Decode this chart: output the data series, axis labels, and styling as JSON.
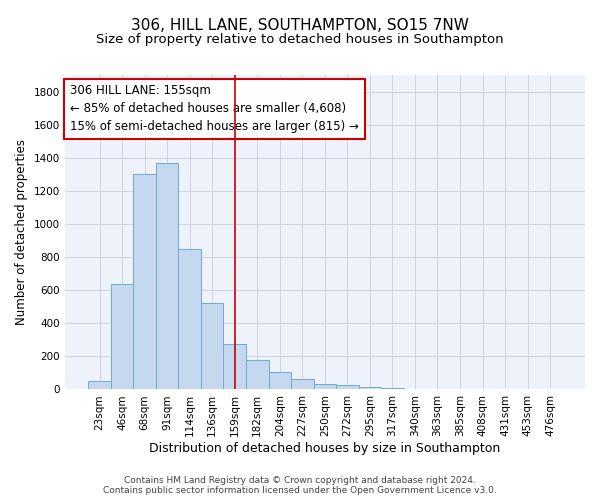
{
  "title": "306, HILL LANE, SOUTHAMPTON, SO15 7NW",
  "subtitle": "Size of property relative to detached houses in Southampton",
  "xlabel": "Distribution of detached houses by size in Southampton",
  "ylabel": "Number of detached properties",
  "bar_color": "#c5d8f0",
  "bar_edge_color": "#6aadd5",
  "grid_color": "#c8d0e0",
  "background_color": "#ffffff",
  "plot_background": "#eef2fa",
  "bin_labels": [
    "23sqm",
    "46sqm",
    "68sqm",
    "91sqm",
    "114sqm",
    "136sqm",
    "159sqm",
    "182sqm",
    "204sqm",
    "227sqm",
    "250sqm",
    "272sqm",
    "295sqm",
    "317sqm",
    "340sqm",
    "363sqm",
    "385sqm",
    "408sqm",
    "431sqm",
    "453sqm",
    "476sqm"
  ],
  "bar_heights": [
    50,
    640,
    1300,
    1370,
    850,
    525,
    275,
    175,
    105,
    65,
    35,
    25,
    15,
    10,
    0,
    0,
    0,
    0,
    0,
    0,
    0
  ],
  "property_bin_index": 6,
  "red_line_color": "#cc0000",
  "annotation_line1": "306 HILL LANE: 155sqm",
  "annotation_line2": "← 85% of detached houses are smaller (4,608)",
  "annotation_line3": "15% of semi-detached houses are larger (815) →",
  "annotation_box_color": "#ffffff",
  "annotation_border_color": "#cc0000",
  "ylim": [
    0,
    1900
  ],
  "yticks": [
    0,
    200,
    400,
    600,
    800,
    1000,
    1200,
    1400,
    1600,
    1800
  ],
  "footer_line1": "Contains HM Land Registry data © Crown copyright and database right 2024.",
  "footer_line2": "Contains public sector information licensed under the Open Government Licence v3.0.",
  "title_fontsize": 11,
  "subtitle_fontsize": 9.5,
  "xlabel_fontsize": 9,
  "ylabel_fontsize": 8.5,
  "tick_fontsize": 7.5,
  "annotation_fontsize": 8.5,
  "footer_fontsize": 6.5
}
